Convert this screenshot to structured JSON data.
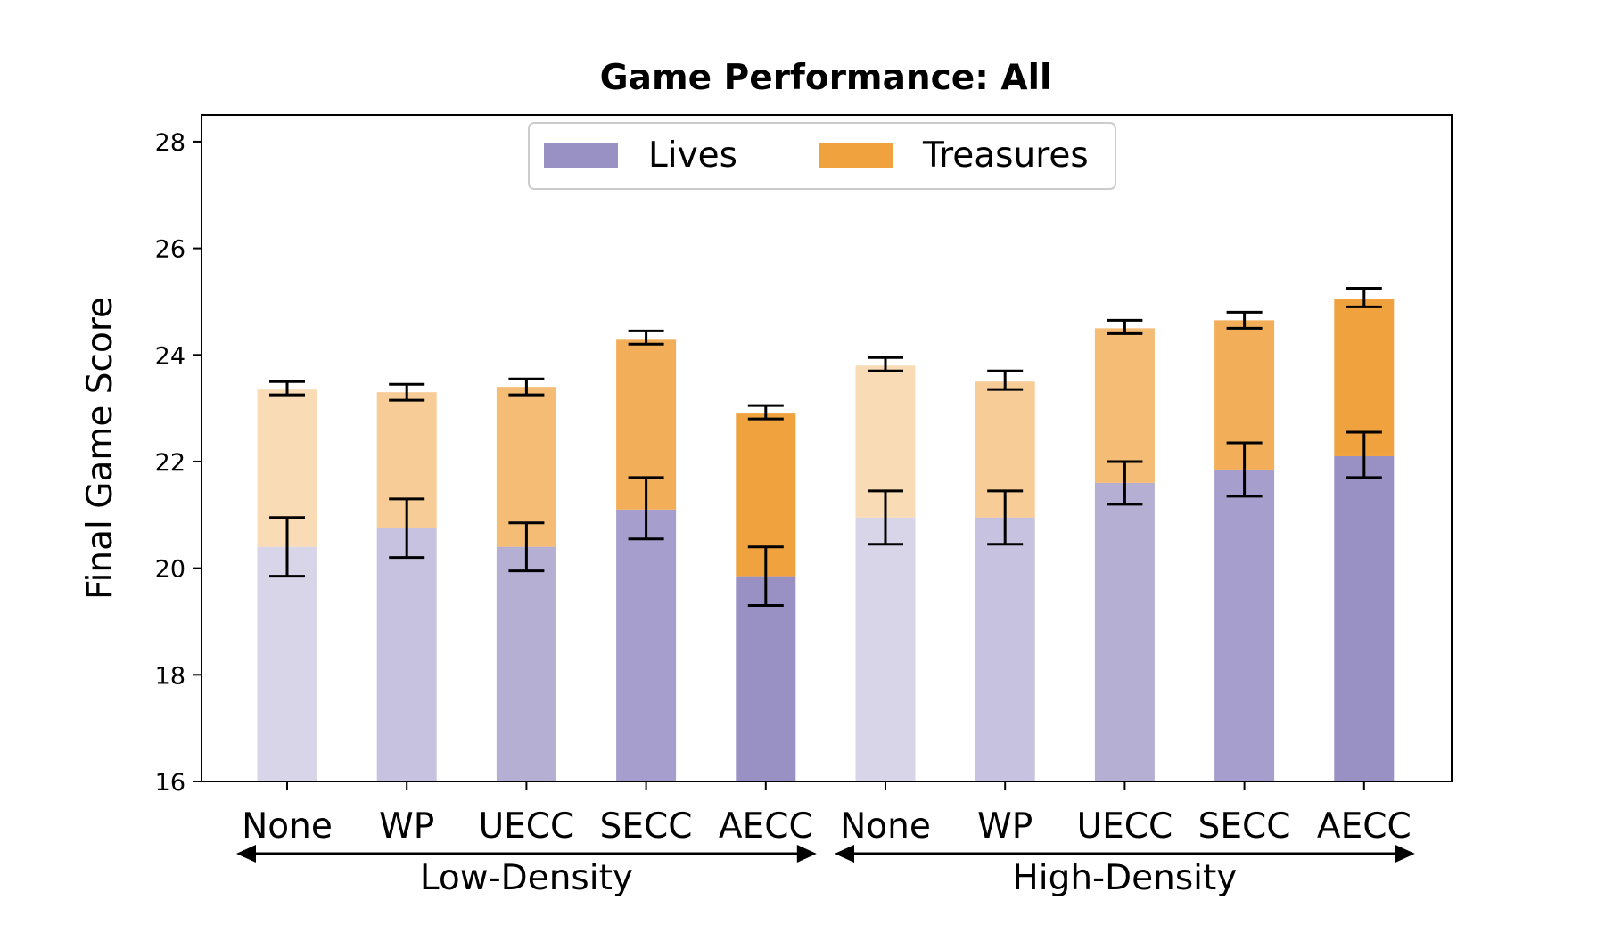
{
  "chart_data": {
    "type": "bar",
    "stacked": true,
    "title": "Game Performance: All",
    "xlabel": "",
    "ylabel": "Final Game Score",
    "ylim": [
      16,
      28.5
    ],
    "yticks": [
      16,
      18,
      20,
      22,
      24,
      26,
      28
    ],
    "grid": false,
    "legend": {
      "placement": "top-center",
      "entries": [
        {
          "name": "Lives",
          "color": "#9990c4"
        },
        {
          "name": "Treasures",
          "color": "#f0a23f"
        }
      ]
    },
    "groups": [
      {
        "label": "Low-Density",
        "categories": [
          "None",
          "WP",
          "UECC",
          "SECC",
          "AECC"
        ]
      },
      {
        "label": "High-Density",
        "categories": [
          "None",
          "WP",
          "UECC",
          "SECC",
          "AECC"
        ]
      }
    ],
    "bar_opacity": [
      0.38,
      0.55,
      0.72,
      0.87,
      1.0,
      0.38,
      0.55,
      0.72,
      0.87,
      1.0
    ],
    "series": [
      {
        "name": "Lives",
        "color": "#9990c4",
        "values": [
          20.4,
          20.75,
          20.4,
          21.1,
          19.85,
          20.95,
          20.95,
          21.6,
          21.85,
          22.1
        ],
        "err_low": [
          19.85,
          20.2,
          19.95,
          20.55,
          19.3,
          20.45,
          20.45,
          21.2,
          21.35,
          21.7
        ],
        "err_high": [
          20.95,
          21.3,
          20.85,
          21.7,
          20.4,
          21.45,
          21.45,
          22.0,
          22.35,
          22.55
        ]
      },
      {
        "name": "Treasures",
        "color": "#f0a23f",
        "totals": [
          23.35,
          23.3,
          23.4,
          24.3,
          22.9,
          23.8,
          23.5,
          24.5,
          24.65,
          25.05
        ],
        "err_low": [
          23.25,
          23.15,
          23.25,
          24.2,
          22.8,
          23.7,
          23.35,
          24.4,
          24.5,
          24.9
        ],
        "err_high": [
          23.5,
          23.45,
          23.55,
          24.45,
          23.05,
          23.95,
          23.7,
          24.65,
          24.8,
          25.25
        ]
      }
    ]
  }
}
